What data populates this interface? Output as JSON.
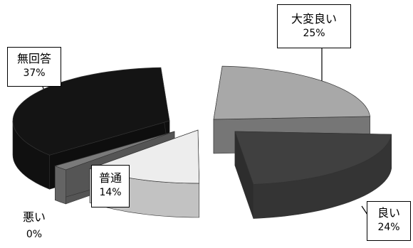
{
  "chart_data": {
    "type": "pie",
    "categories": [
      "大変良い",
      "良い",
      "普通",
      "悪い",
      "無回答"
    ],
    "values": [
      25,
      24,
      14,
      0,
      37
    ],
    "value_labels": [
      "25%",
      "24%",
      "14%",
      "0%",
      "37%"
    ],
    "colors": [
      "#a8a8a8",
      "#404040",
      "#ededed",
      "#7a7a7a",
      "#141414"
    ],
    "exploded": true,
    "three_d": true
  }
}
